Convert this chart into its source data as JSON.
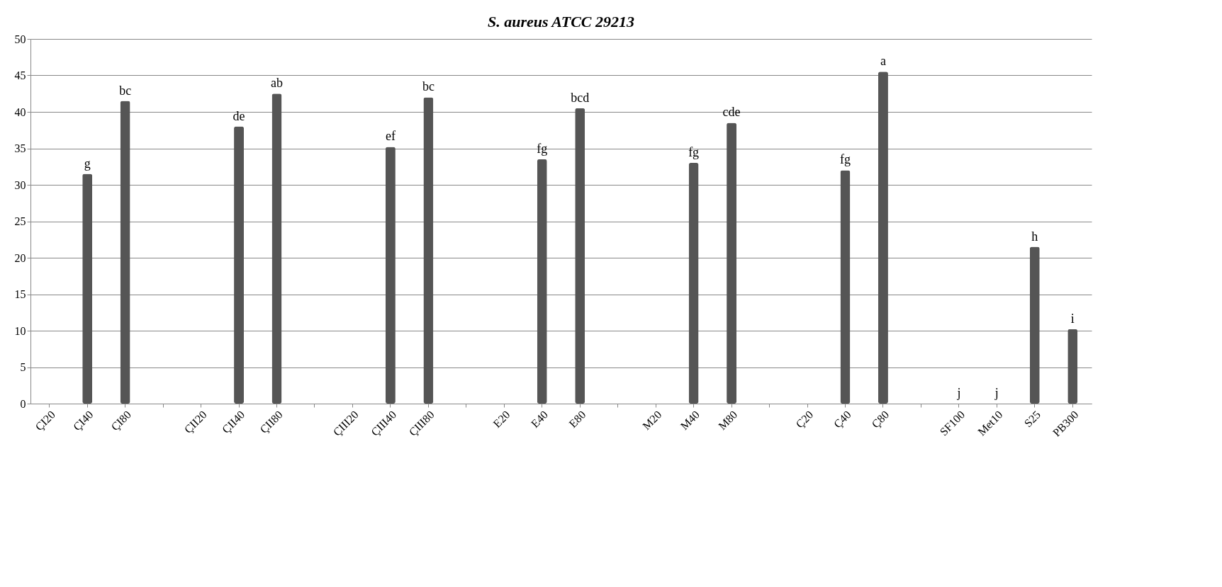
{
  "chart_data": {
    "type": "bar",
    "title": "S. aureus ATCC 29213",
    "categories": [
      "ÇI20",
      "ÇI40",
      "ÇI80",
      null,
      "ÇII20",
      "ÇII40",
      "ÇII80",
      null,
      "ÇIII20",
      "ÇIII40",
      "ÇIII80",
      null,
      "E20",
      "E40",
      "E80",
      null,
      "M20",
      "M40",
      "M80",
      null,
      "Ç20",
      "Ç40",
      "Ç80",
      null,
      "SF100",
      "Met10",
      "S25",
      "PB300"
    ],
    "values": [
      null,
      31.5,
      41.5,
      null,
      null,
      38,
      42.5,
      null,
      null,
      35.2,
      42,
      null,
      null,
      33.5,
      40.5,
      null,
      null,
      33,
      38.5,
      null,
      null,
      32,
      45.5,
      null,
      0,
      0,
      21.5,
      10.2
    ],
    "value_labels": [
      null,
      "g",
      "bc",
      null,
      null,
      "de",
      "ab",
      null,
      null,
      "ef",
      "bc",
      null,
      null,
      "fg",
      "bcd",
      null,
      null,
      "fg",
      "cde",
      null,
      null,
      "fg",
      "a",
      null,
      "j",
      "j",
      "h",
      "i"
    ],
    "color": "#555555",
    "ylim": [
      0,
      50
    ],
    "yticks": [
      0,
      5,
      10,
      15,
      20,
      25,
      30,
      35,
      40,
      45,
      50
    ],
    "grid": "y"
  }
}
